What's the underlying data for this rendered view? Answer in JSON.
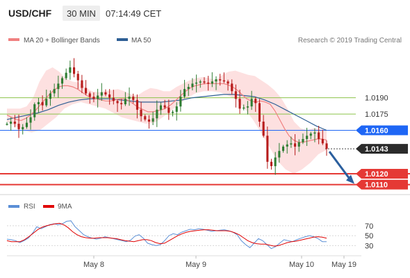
{
  "header": {
    "symbol": "USD/CHF",
    "timeframe": "30 MIN",
    "time": "07:14:49 CET"
  },
  "legend": {
    "items": [
      {
        "label": "MA 20 + Bollinger Bands",
        "color": "#f08080"
      },
      {
        "label": "MA 50",
        "color": "#2e5f95"
      }
    ],
    "watermark": "Research © 2019 Trading Central"
  },
  "rsi_legend": {
    "items": [
      {
        "label": "RSI",
        "color": "#5b8fd6"
      },
      {
        "label": "9MA",
        "color": "#e00000"
      }
    ]
  },
  "colors": {
    "bull": "#2e7d32",
    "bear": "#b71c1c",
    "level_green": "#8bc34a",
    "level_blue": "#1e66f5",
    "level_red": "#e53935",
    "bb_fill": "#fde0e0",
    "ma20": "#f08080",
    "ma50": "#2e5f95",
    "rsi": "#5b8fd6",
    "rsi_ma": "#e00000",
    "arrow": "#2b5f9e"
  },
  "chart_data": {
    "type": "candlestick",
    "y_axis": {
      "min": 1.0104,
      "max": 1.0232
    },
    "levels": [
      {
        "value": 1.019,
        "label": "1.0190",
        "style": "green-line"
      },
      {
        "value": 1.0175,
        "label": "1.0175",
        "style": "green-line"
      },
      {
        "value": 1.016,
        "label": "1.0160",
        "style": "blue-box"
      },
      {
        "value": 1.0143,
        "label": "1.0143",
        "style": "dark-box"
      },
      {
        "value": 1.012,
        "label": "1.0120",
        "style": "red-box"
      },
      {
        "value": 1.011,
        "label": "1.0110",
        "style": "red-box"
      }
    ],
    "x_labels": [
      "May 8",
      "May 9",
      "May 10",
      "May 19"
    ],
    "forecast": {
      "from": 1.0143,
      "to": 1.0112,
      "direction": "down"
    },
    "price": [
      1.0166,
      1.0168,
      1.0166,
      1.0161,
      1.0163,
      1.0167,
      1.0172,
      1.0184,
      1.0186,
      1.0183,
      1.0189,
      1.0194,
      1.0198,
      1.0203,
      1.0208,
      1.0213,
      1.0218,
      1.0212,
      1.0206,
      1.0199,
      1.0194,
      1.0191,
      1.0189,
      1.0192,
      1.0195,
      1.0193,
      1.019,
      1.0187,
      1.0185,
      1.0184,
      1.0189,
      1.0191,
      1.0188,
      1.0179,
      1.0173,
      1.017,
      1.0168,
      1.0171,
      1.0179,
      1.0183,
      1.0181,
      1.0176,
      1.0177,
      1.0182,
      1.0191,
      1.0198,
      1.02,
      1.0203,
      1.0204,
      1.0205,
      1.0204,
      1.0203,
      1.0205,
      1.0207,
      1.0206,
      1.0205,
      1.0203,
      1.0196,
      1.0189,
      1.018,
      1.0181,
      1.0182,
      1.0189,
      1.0185,
      1.0168,
      1.0155,
      1.0131,
      1.0127,
      1.0135,
      1.0141,
      1.0145,
      1.0147,
      1.0148,
      1.0145,
      1.0149,
      1.0152,
      1.0155,
      1.0157,
      1.0158,
      1.0152,
      1.0148,
      1.0143
    ],
    "ma20": [
      1.0174,
      1.0172,
      1.017,
      1.0169,
      1.0171,
      1.0174,
      1.0178,
      1.0183,
      1.0188,
      1.0193,
      1.0197,
      1.02,
      1.0201,
      1.0201,
      1.02,
      1.0198,
      1.0195,
      1.0192,
      1.019,
      1.0189,
      1.0188,
      1.0187,
      1.0187,
      1.0188,
      1.0189,
      1.0189,
      1.0187,
      1.0184,
      1.0181,
      1.0179,
      1.0177,
      1.0177,
      1.0178,
      1.0179,
      1.0181,
      1.0184,
      1.0188,
      1.0192,
      1.0196,
      1.0199,
      1.0201,
      1.0202,
      1.0203,
      1.0203,
      1.0203,
      1.0203,
      1.0203,
      1.0202,
      1.02,
      1.0197,
      1.0193,
      1.0189,
      1.0187,
      1.0186,
      1.0187,
      1.0186,
      1.0184,
      1.0178,
      1.017,
      1.0162,
      1.0155,
      1.0151,
      1.0149,
      1.0149,
      1.015,
      1.0151,
      1.0152,
      1.0152,
      1.0151
    ],
    "bb_upper": [
      1.018,
      1.018,
      1.018,
      1.0182,
      1.019,
      1.0205,
      1.0215,
      1.0218,
      1.0214,
      1.0208,
      1.0205,
      1.0204,
      1.02,
      1.0196,
      1.0195,
      1.0196,
      1.0197,
      1.0198,
      1.0196,
      1.0193,
      1.0192,
      1.0196,
      1.0199,
      1.0198,
      1.0196,
      1.0196,
      1.02,
      1.0203,
      1.0206,
      1.0208,
      1.0209,
      1.0208,
      1.0206,
      1.0211,
      1.0214,
      1.0215,
      1.0213,
      1.0211,
      1.021,
      1.0206,
      1.0202,
      1.0197,
      1.019,
      1.018,
      1.0168,
      1.0162,
      1.016,
      1.0162,
      1.0161,
      1.016
    ],
    "bb_lower": [
      1.0168,
      1.0164,
      1.016,
      1.0158,
      1.016,
      1.0166,
      1.0172,
      1.018,
      1.0184,
      1.0186,
      1.0184,
      1.0182,
      1.018,
      1.0176,
      1.0172,
      1.017,
      1.0168,
      1.0166,
      1.0167,
      1.0172,
      1.0178,
      1.0184,
      1.019,
      1.0194,
      1.0196,
      1.0196,
      1.0195,
      1.0192,
      1.0188,
      1.018,
      1.017,
      1.0158,
      1.0145,
      1.0132,
      1.0124,
      1.012,
      1.0124,
      1.013,
      1.0138,
      1.0142
    ],
    "ma50": [
      1.017,
      1.0172,
      1.0174,
      1.0176,
      1.0179,
      1.0183,
      1.0186,
      1.0188,
      1.0189,
      1.0189,
      1.0189,
      1.0188,
      1.0187,
      1.0186,
      1.0186,
      1.0186,
      1.0187,
      1.0188,
      1.019,
      1.0191,
      1.0192,
      1.0193,
      1.0193,
      1.0192,
      1.0191,
      1.0188,
      1.0184,
      1.0179,
      1.0174,
      1.0169,
      1.0164,
      1.016
    ],
    "rsi": {
      "ticks": [
        70,
        50,
        30
      ],
      "range": [
        18,
        88
      ],
      "values": [
        43,
        42,
        40,
        36,
        40,
        45,
        55,
        68,
        64,
        68,
        72,
        74,
        72,
        74,
        79,
        80,
        68,
        60,
        52,
        48,
        45,
        43,
        45,
        48,
        46,
        44,
        42,
        40,
        38,
        41,
        49,
        52,
        45,
        35,
        32,
        30,
        32,
        40,
        50,
        54,
        52,
        57,
        60,
        63,
        62,
        64,
        63,
        61,
        59,
        60,
        61,
        62,
        60,
        57,
        52,
        40,
        32,
        26,
        35,
        44,
        40,
        32,
        24,
        28,
        35,
        42,
        40,
        38,
        42,
        45,
        48,
        50,
        48,
        44,
        38,
        38
      ],
      "ma": [
        40,
        38,
        38,
        38,
        42,
        48,
        55,
        62,
        67,
        70,
        72,
        74,
        75,
        72,
        66,
        58,
        52,
        48,
        46,
        45,
        45,
        46,
        46,
        46,
        45,
        44,
        42,
        40,
        39,
        38,
        40,
        42,
        42,
        40,
        36,
        34,
        35,
        40,
        45,
        50,
        54,
        57,
        59,
        60,
        61,
        62,
        62,
        61,
        60,
        60,
        60,
        59,
        56,
        52,
        46,
        40,
        36,
        34,
        33,
        33,
        31,
        29,
        30,
        33,
        36,
        38,
        39,
        41,
        43,
        45,
        47,
        48,
        47,
        45
      ]
    }
  }
}
